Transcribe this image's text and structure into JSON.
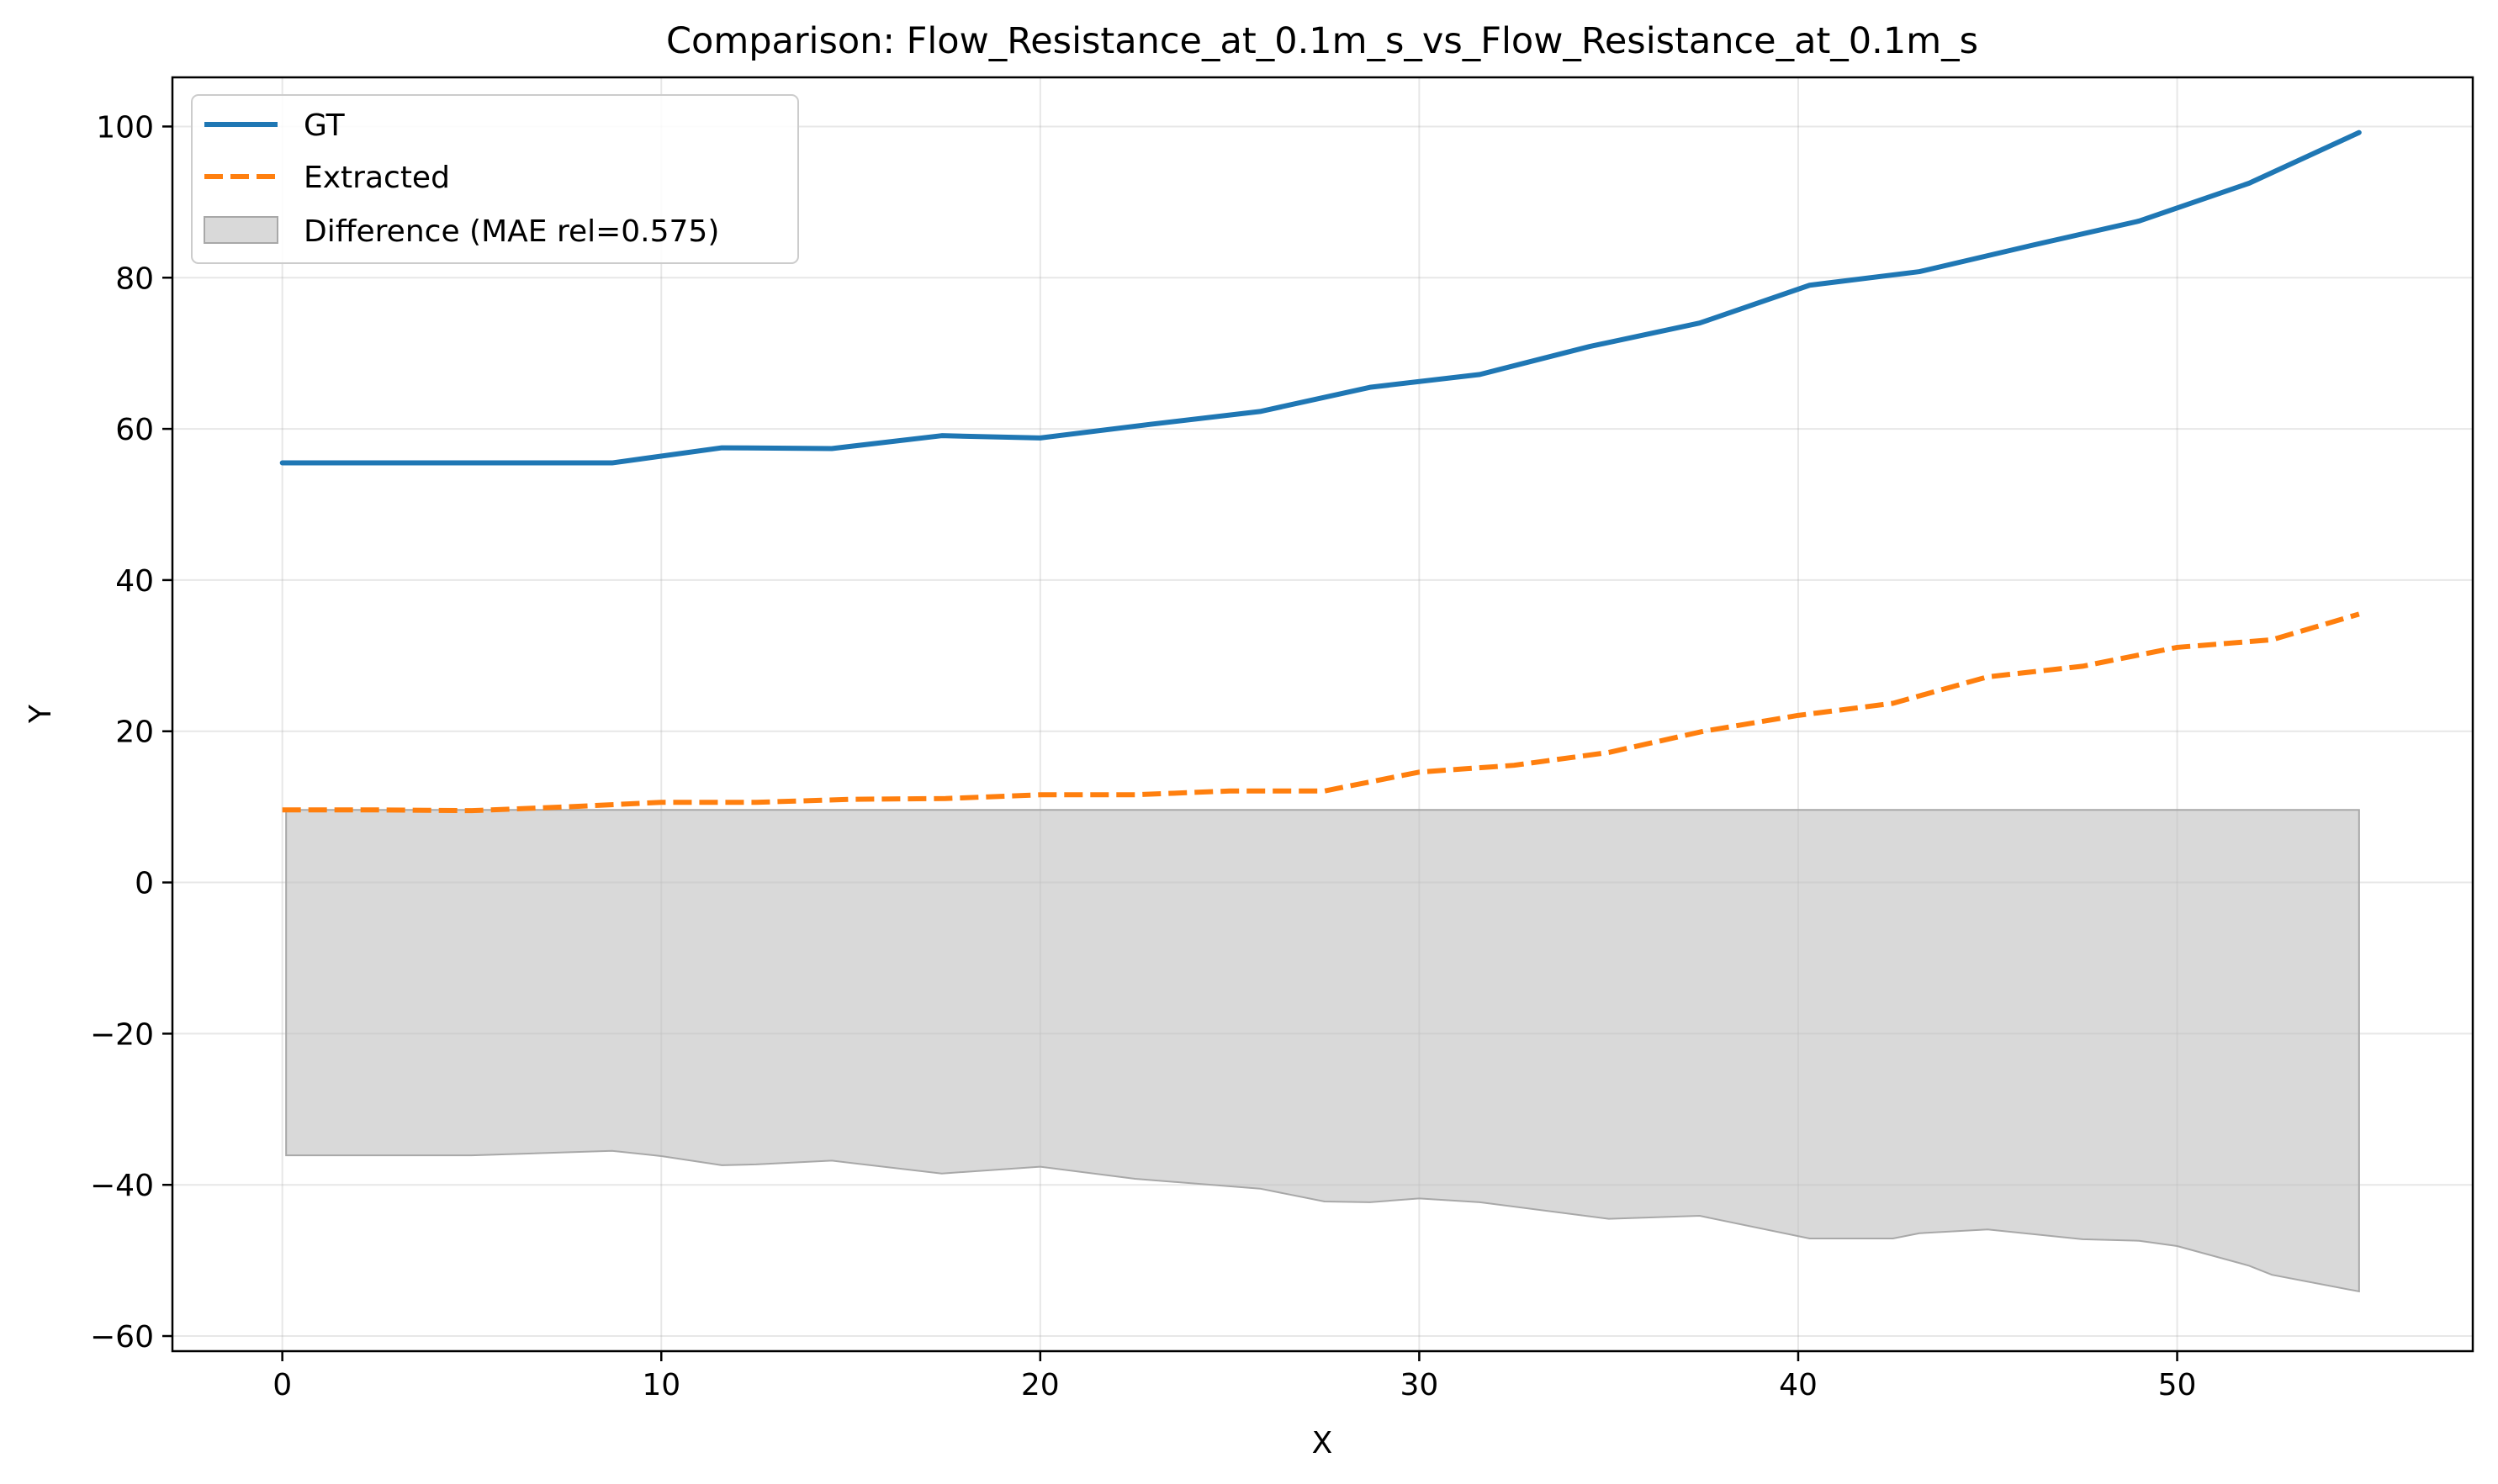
{
  "chart_data": {
    "type": "line",
    "title": "Comparison: Flow_Resistance_at_0.1m_s_vs_Flow_Resistance_at_0.1m_s",
    "xlabel": "X",
    "ylabel": "Y",
    "xlim": [
      -2.9,
      57.8
    ],
    "ylim": [
      -62,
      106.5
    ],
    "xticks": [
      0,
      10,
      20,
      30,
      40,
      50
    ],
    "yticks": [
      -60,
      -40,
      -20,
      0,
      20,
      40,
      60,
      80,
      100
    ],
    "ytick_labels": [
      "−60",
      "−40",
      "−20",
      "0",
      "20",
      "40",
      "60",
      "80",
      "100"
    ],
    "grid": true,
    "legend_position": "top-left",
    "series": [
      {
        "name": "GT",
        "color": "#1f77b4",
        "style": "solid",
        "x": [
          0,
          2.9,
          5.8,
          8.7,
          11.6,
          14.5,
          17.4,
          20.0,
          22.9,
          25.8,
          28.7,
          31.6,
          34.5,
          37.4,
          40.3,
          43.2,
          46.1,
          49.0,
          51.9,
          54.8
        ],
        "y": [
          55.5,
          55.5,
          55.5,
          55.5,
          57.5,
          57.4,
          59.1,
          58.8,
          60.6,
          62.3,
          65.5,
          67.2,
          70.9,
          74.0,
          79.0,
          80.8,
          84.2,
          87.5,
          92.5,
          99.2
        ]
      },
      {
        "name": "Extracted",
        "color": "#ff7f0e",
        "style": "dashed",
        "x": [
          0,
          2.5,
          5.0,
          7.5,
          10.0,
          12.5,
          15.0,
          17.5,
          20.0,
          22.5,
          25.0,
          27.5,
          30.0,
          32.5,
          35.0,
          37.5,
          40.0,
          42.5,
          45.0,
          47.5,
          50.0,
          52.5,
          54.8
        ],
        "y": [
          9.6,
          9.6,
          9.5,
          10.0,
          10.6,
          10.6,
          11.0,
          11.1,
          11.6,
          11.6,
          12.1,
          12.1,
          14.6,
          15.5,
          17.2,
          20.0,
          22.1,
          23.7,
          27.2,
          28.6,
          31.1,
          32.1,
          35.5
        ]
      }
    ],
    "difference_band": {
      "name": "Difference (MAE rel=0.575)",
      "color": "#bfbfbf",
      "upper": 9.6,
      "x": [
        0.1,
        5.0,
        8.7,
        10.0,
        11.6,
        12.5,
        14.5,
        17.4,
        20.0,
        22.5,
        25.8,
        27.5,
        28.7,
        30.0,
        31.6,
        35.0,
        37.4,
        40.3,
        42.5,
        43.2,
        45.0,
        47.5,
        49.0,
        50.0,
        51.9,
        52.5,
        54.8
      ],
      "lower": [
        -36.1,
        -36.1,
        -35.5,
        -36.2,
        -37.4,
        -37.3,
        -36.8,
        -38.5,
        -37.6,
        -39.2,
        -40.5,
        -42.2,
        -42.3,
        -41.8,
        -42.3,
        -44.5,
        -44.1,
        -47.1,
        -47.1,
        -46.4,
        -45.9,
        -47.2,
        -47.4,
        -48.1,
        -50.7,
        -51.9,
        -54.1
      ]
    }
  }
}
